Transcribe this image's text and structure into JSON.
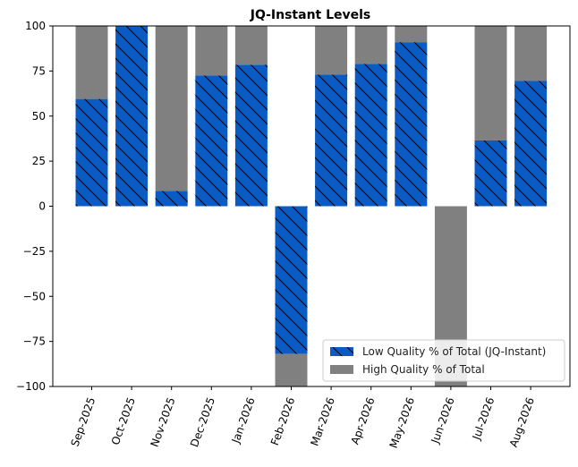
{
  "chart_data": {
    "type": "bar",
    "stacked": true,
    "title": "JQ-Instant Levels",
    "xlabel": "",
    "ylabel": "",
    "ylim": [
      -100,
      100
    ],
    "yticks": [
      100,
      75,
      50,
      25,
      0,
      -25,
      -50,
      -75,
      -100
    ],
    "categories": [
      "Sep-2025",
      "Oct-2025",
      "Nov-2025",
      "Dec-2025",
      "Jan-2026",
      "Feb-2026",
      "Mar-2026",
      "Apr-2026",
      "May-2026",
      "Jun-2026",
      "Jul-2026",
      "Aug-2026"
    ],
    "series": [
      {
        "name": "Low Quality % of Total (JQ-Instant)",
        "color": "#0a5cc4",
        "hatch": "diagonal",
        "values": [
          59.5,
          100,
          8.5,
          72.5,
          78.5,
          -82,
          73,
          79,
          91,
          0,
          36.5,
          69.5
        ]
      },
      {
        "name": "High Quality % of Total",
        "color": "#808080",
        "values": [
          40.5,
          0,
          91.5,
          27.5,
          21.5,
          -18,
          27,
          21,
          9,
          -100,
          63.5,
          30.5
        ]
      }
    ],
    "legend_position": "lower-right",
    "grid": false
  }
}
